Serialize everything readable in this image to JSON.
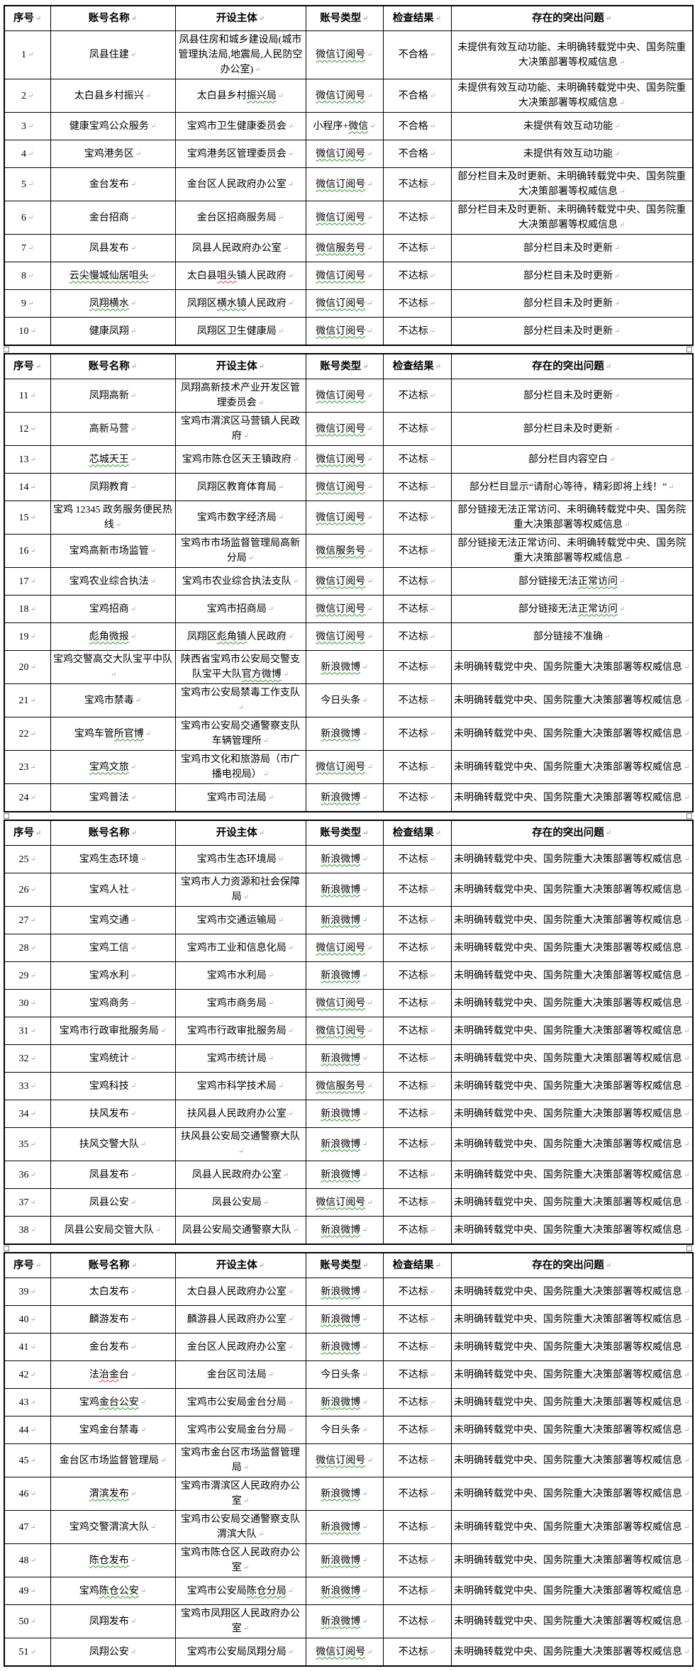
{
  "colors": {
    "border": "#000000",
    "squiggle_green": "#1fa11f",
    "squiggle_red": "#ef2f2f",
    "pilcrow_gray": "#a9a9a9"
  },
  "columns": [
    "序号",
    "账号名称",
    "开设主体",
    "账号类型",
    "检查结果",
    "存在的突出问题"
  ],
  "tables": [
    {
      "rows": [
        {
          "no": "1",
          "name": "凤县住建",
          "entity": "凤县住房和城乡建设局(城市管理执法局,地震局,人民防空办公室)",
          "type": [
            {
              "t": "微信订阅号",
              "u": "g"
            }
          ],
          "result": "不合格",
          "problem": "未提供有效互动功能、未明确转载党中央、国务院重大决策部署等权威信息"
        },
        {
          "no": "2",
          "name": "太白县乡村振兴",
          "entity": [
            {
              "t": "太白县乡村"
            },
            {
              "t": "振兴局",
              "u": "g"
            }
          ],
          "type": [
            {
              "t": "微信订阅号",
              "u": "g"
            }
          ],
          "result": "不合格",
          "problem": "未提供有效互动功能、未明确转载党中央、国务院重大决策部署等权威信息"
        },
        {
          "no": "3",
          "name": "健康宝鸡公众服务",
          "entity": "宝鸡市卫生健康委员会",
          "type": [
            {
              "t": "小程序+"
            },
            {
              "t": "微信",
              "u": "g"
            }
          ],
          "result": "不合格",
          "problem": "未提供有效互动功能"
        },
        {
          "no": "4",
          "name": "宝鸡港务区",
          "entity": "宝鸡港务区管理委员会",
          "type": [
            {
              "t": "微信订阅号",
              "u": "g"
            }
          ],
          "result": "不合格",
          "problem": "未提供有效互动功能"
        },
        {
          "no": "5",
          "name": "金台发布",
          "entity": "金台区人民政府办公室",
          "type": [
            {
              "t": "微信订阅号",
              "u": "g"
            }
          ],
          "result": "不达标",
          "problem": "部分栏目未及时更新、未明确转载党中央、国务院重大决策部署等权威信息"
        },
        {
          "no": "6",
          "name": "金台招商",
          "entity": "金台区招商服务局",
          "type": [
            {
              "t": "微信订阅号",
              "u": "g"
            }
          ],
          "result": "不达标",
          "problem": "部分栏目未及时更新、未明确转载党中央、国务院重大决策部署等权威信息"
        },
        {
          "no": "7",
          "name": "凤县发布",
          "entity": "凤县人民政府办公室",
          "type": [
            {
              "t": "微信服务号",
              "u": "g"
            }
          ],
          "result": "不达标",
          "problem": "部分栏目未及时更新"
        },
        {
          "no": "8",
          "name": [
            {
              "t": "云尖慢城仙居咀头",
              "u": "g"
            }
          ],
          "entity": [
            {
              "t": "太白县"
            },
            {
              "t": "咀头",
              "u": "r"
            },
            {
              "t": "镇人民政府"
            }
          ],
          "type": [
            {
              "t": "微信订阅号",
              "u": "g"
            }
          ],
          "result": "不达标",
          "problem": "部分栏目未及时更新"
        },
        {
          "no": "9",
          "name": [
            {
              "t": "凤翔横水",
              "u": "g"
            }
          ],
          "entity": [
            {
              "t": "凤翔区"
            },
            {
              "t": "横水镇",
              "u": "g"
            },
            {
              "t": "人民政府"
            }
          ],
          "type": [
            {
              "t": "微信订阅号",
              "u": "g"
            }
          ],
          "result": "不达标",
          "problem": "部分栏目未及时更新"
        },
        {
          "no": "10",
          "name": "健康凤翔",
          "entity": "凤翔区卫生健康局",
          "type": [
            {
              "t": "微信订阅号",
              "u": "g"
            }
          ],
          "result": "不达标",
          "problem": "部分栏目未及时更新"
        }
      ]
    },
    {
      "rows": [
        {
          "no": "11",
          "name": "凤翔高新",
          "entity": "凤翔高新技术产业开发区管理委员会",
          "type": [
            {
              "t": "微信订阅号",
              "u": "g"
            }
          ],
          "result": "不达标",
          "problem": "部分栏目未及时更新"
        },
        {
          "no": "12",
          "name": "高新马营",
          "entity": "宝鸡市渭滨区马营镇人民政府",
          "type": [
            {
              "t": "微信订阅号",
              "u": "g"
            }
          ],
          "result": "不达标",
          "problem": "部分栏目未及时更新"
        },
        {
          "no": "13",
          "name": [
            {
              "t": "芯城天王",
              "u": "g"
            }
          ],
          "entity": "宝鸡市陈仓区天王镇政府",
          "type": [
            {
              "t": "微信订阅号",
              "u": "g"
            }
          ],
          "result": "不达标",
          "problem": "部分栏目内容空白"
        },
        {
          "no": "14",
          "name": "凤翔教育",
          "entity": "凤翔区教育体育局",
          "type": [
            {
              "t": "微信订阅号",
              "u": "g"
            }
          ],
          "result": "不达标",
          "problem": "部分栏目显示“请耐心等待，精彩即将上线！”"
        },
        {
          "no": "15",
          "name": "宝鸡 12345 政务服务便民热线",
          "entity": "宝鸡市数字经济局",
          "type": [
            {
              "t": "微信订阅号",
              "u": "g"
            }
          ],
          "result": "不达标",
          "problem": "部分链接无法正常访问、未明确转载党中央、国务院重大决策部署等权威信息"
        },
        {
          "no": "16",
          "name": "宝鸡高新市场监管",
          "entity": "宝鸡市市场监督管理局高新分局",
          "type": [
            {
              "t": "微信服务号",
              "u": "g"
            }
          ],
          "result": "不达标",
          "problem": "部分链接无法正常访问、未明确转载党中央、国务院重大决策部署等权威信息"
        },
        {
          "no": "17",
          "name": "宝鸡农业综合执法",
          "entity": "宝鸡市农业综合执法支队",
          "type": [
            {
              "t": "微信订阅号",
              "u": "g"
            }
          ],
          "result": "不达标",
          "problem": [
            {
              "t": "部分链接无法"
            },
            {
              "t": "正常访问",
              "u": "g"
            }
          ]
        },
        {
          "no": "18",
          "name": "宝鸡招商",
          "entity": "宝鸡市招商局",
          "type": [
            {
              "t": "微信订阅号",
              "u": "g"
            }
          ],
          "result": "不达标",
          "problem": [
            {
              "t": "部分链接无法"
            },
            {
              "t": "正常访问",
              "u": "g"
            }
          ]
        },
        {
          "no": "19",
          "name": [
            {
              "t": "彪角微报",
              "u": "g"
            }
          ],
          "entity": [
            {
              "t": "凤翔区"
            },
            {
              "t": "彪角镇",
              "u": "g"
            },
            {
              "t": "人民政府"
            }
          ],
          "type": [
            {
              "t": "微信订阅号",
              "u": "g"
            }
          ],
          "result": "不达标",
          "problem": "部分链接不准确"
        },
        {
          "no": "20",
          "name": "宝鸡交警高交大队宝平中队",
          "entity": [
            {
              "t": "陕西省宝鸡市公安局交警支队宝平大队"
            },
            {
              "t": "官方微博",
              "u": "g"
            }
          ],
          "type": [
            {
              "t": "新浪微博",
              "u": "g"
            }
          ],
          "result": "不达标",
          "problem": "未明确转载党中央、国务院重大决策部署等权威信息"
        },
        {
          "no": "21",
          "name": "宝鸡市禁毒",
          "entity": "宝鸡市公安局禁毒工作支队",
          "type": "今日头条",
          "result": "不达标",
          "problem": "未明确转载党中央、国务院重大决策部署等权威信息"
        },
        {
          "no": "22",
          "name": [
            {
              "t": "宝鸡车管"
            },
            {
              "t": "所官博",
              "u": "g"
            }
          ],
          "entity": "宝鸡市公安局交通警察支队车辆管理所",
          "type": [
            {
              "t": "新浪微博",
              "u": "g"
            }
          ],
          "result": "不达标",
          "problem": "未明确转载党中央、国务院重大决策部署等权威信息"
        },
        {
          "no": "23",
          "name": [
            {
              "t": "宝鸡文旅",
              "u": "g"
            }
          ],
          "entity": "宝鸡市文化和旅游局（市广播电视局）",
          "type": [
            {
              "t": "微信订阅号",
              "u": "g"
            }
          ],
          "result": "不达标",
          "problem": "未明确转载党中央、国务院重大决策部署等权威信息"
        },
        {
          "no": "24",
          "name": "宝鸡普法",
          "entity": "宝鸡市司法局",
          "type": [
            {
              "t": "新浪微博",
              "u": "g"
            }
          ],
          "result": "不达标",
          "problem": "未明确转载党中央、国务院重大决策部署等权威信息"
        }
      ]
    },
    {
      "rows": [
        {
          "no": "25",
          "name": "宝鸡生态环境",
          "entity": "宝鸡市生态环境局",
          "type": [
            {
              "t": "新浪微博",
              "u": "g"
            }
          ],
          "result": "不达标",
          "problem": "未明确转载党中央、国务院重大决策部署等权威信息"
        },
        {
          "no": "26",
          "name": "宝鸡人社",
          "entity": "宝鸡市人力资源和社会保障局",
          "type": [
            {
              "t": "新浪微博",
              "u": "g"
            }
          ],
          "result": "不达标",
          "problem": "未明确转载党中央、国务院重大决策部署等权威信息"
        },
        {
          "no": "27",
          "name": "宝鸡交通",
          "entity": "宝鸡市交通运输局",
          "type": [
            {
              "t": "新浪微博",
              "u": "g"
            }
          ],
          "result": "不达标",
          "problem": "未明确转载党中央、国务院重大决策部署等权威信息"
        },
        {
          "no": "28",
          "name": "宝鸡工信",
          "entity": "宝鸡市工业和信息化局",
          "type": [
            {
              "t": "微信订阅号",
              "u": "g"
            }
          ],
          "result": "不达标",
          "problem": "未明确转载党中央、国务院重大决策部署等权威信息"
        },
        {
          "no": "29",
          "name": "宝鸡水利",
          "entity": "宝鸡市水利局",
          "type": [
            {
              "t": "新浪微博",
              "u": "g"
            }
          ],
          "result": "不达标",
          "problem": "未明确转载党中央、国务院重大决策部署等权威信息"
        },
        {
          "no": "30",
          "name": "宝鸡商务",
          "entity": "宝鸡市商务局",
          "type": [
            {
              "t": "微信订阅号",
              "u": "g"
            }
          ],
          "result": "不达标",
          "problem": "未明确转载党中央、国务院重大决策部署等权威信息"
        },
        {
          "no": "31",
          "name": "宝鸡市行政审批服务局",
          "entity": "宝鸡市行政审批服务局",
          "type": [
            {
              "t": "微信订阅号",
              "u": "g"
            }
          ],
          "result": "不达标",
          "problem": "未明确转载党中央、国务院重大决策部署等权威信息"
        },
        {
          "no": "32",
          "name": "宝鸡统计",
          "entity": "宝鸡市统计局",
          "type": [
            {
              "t": "新浪微博",
              "u": "g"
            }
          ],
          "result": "不达标",
          "problem": "未明确转载党中央、国务院重大决策部署等权威信息"
        },
        {
          "no": "33",
          "name": "宝鸡科技",
          "entity": "宝鸡市科学技术局",
          "type": [
            {
              "t": "微信服务号",
              "u": "g"
            }
          ],
          "result": "不达标",
          "problem": "未明确转载党中央、国务院重大决策部署等权威信息"
        },
        {
          "no": "34",
          "name": "扶风发布",
          "entity": "扶风县人民政府办公室",
          "type": [
            {
              "t": "新浪微博",
              "u": "g"
            }
          ],
          "result": "不达标",
          "problem": "未明确转载党中央、国务院重大决策部署等权威信息"
        },
        {
          "no": "35",
          "name": "扶风交警大队",
          "entity": "扶风县公安局交通警察大队",
          "type": [
            {
              "t": "新浪微博",
              "u": "g"
            }
          ],
          "result": "不达标",
          "problem": "未明确转载党中央、国务院重大决策部署等权威信息"
        },
        {
          "no": "36",
          "name": "凤县发布",
          "entity": "凤县人民政府办公室",
          "type": [
            {
              "t": "新浪微博",
              "u": "g"
            }
          ],
          "result": "不达标",
          "problem": "未明确转载党中央、国务院重大决策部署等权威信息"
        },
        {
          "no": "37",
          "name": "凤县公安",
          "entity": "凤县公安局",
          "type": [
            {
              "t": "微信订阅号",
              "u": "g"
            }
          ],
          "result": "不达标",
          "problem": "未明确转载党中央、国务院重大决策部署等权威信息"
        },
        {
          "no": "38",
          "name": "凤县公安局交管大队",
          "entity": "凤县公安局交通警察大队",
          "type": [
            {
              "t": "新浪微博",
              "u": "g"
            }
          ],
          "result": "不达标",
          "problem": "未明确转载党中央、国务院重大决策部署等权威信息"
        }
      ]
    },
    {
      "rows": [
        {
          "no": "39",
          "name": "太白发布",
          "entity": "太白县人民政府办公室",
          "type": [
            {
              "t": "新浪微博",
              "u": "g"
            }
          ],
          "result": "不达标",
          "problem": "未明确转载党中央、国务院重大决策部署等权威信息"
        },
        {
          "no": "40",
          "name": "麟游发布",
          "entity": "麟游县人民政府办公室",
          "type": [
            {
              "t": "新浪微博",
              "u": "g"
            }
          ],
          "result": "不达标",
          "problem": "未明确转载党中央、国务院重大决策部署等权威信息"
        },
        {
          "no": "41",
          "name": "金台发布",
          "entity": "金台区人民政府办公室",
          "type": [
            {
              "t": "新浪微博",
              "u": "g"
            }
          ],
          "result": "不达标",
          "problem": "未明确转载党中央、国务院重大决策部署等权威信息"
        },
        {
          "no": "42",
          "name": [
            {
              "t": "法"
            },
            {
              "t": "治金",
              "u": "r"
            },
            {
              "t": "台"
            }
          ],
          "entity": "金台区司法局",
          "type": "今日头条",
          "result": "不达标",
          "problem": "未明确转载党中央、国务院重大决策部署等权威信息"
        },
        {
          "no": "43",
          "name": [
            {
              "t": "宝鸡"
            },
            {
              "t": "金台公安",
              "u": "g"
            }
          ],
          "entity": "宝鸡市公安局金台分局",
          "type": [
            {
              "t": "新浪微博",
              "u": "g"
            }
          ],
          "result": "不达标",
          "problem": "未明确转载党中央、国务院重大决策部署等权威信息"
        },
        {
          "no": "44",
          "name": "宝鸡金台禁毒",
          "entity": "宝鸡市公安局金台分局",
          "type": "今日头条",
          "result": "不达标",
          "problem": "未明确转载党中央、国务院重大决策部署等权威信息"
        },
        {
          "no": "45",
          "name": "金台区市场监督管理局",
          "entity": "宝鸡市金台区市场监督管理局",
          "type": [
            {
              "t": "微信订阅号",
              "u": "g"
            }
          ],
          "result": "不达标",
          "problem": "未明确转载党中央、国务院重大决策部署等权威信息"
        },
        {
          "no": "46",
          "name": [
            {
              "t": "渭滨发布",
              "u": "g"
            }
          ],
          "entity": "宝鸡市渭滨区人民政府办公室",
          "type": [
            {
              "t": "新浪微博",
              "u": "g"
            }
          ],
          "result": "不达标",
          "problem": "未明确转载党中央、国务院重大决策部署等权威信息"
        },
        {
          "no": "47",
          "name": "宝鸡交警渭滨大队",
          "entity": "宝鸡市公安局交通警察支队渭滨大队",
          "type": [
            {
              "t": "新浪微博",
              "u": "g"
            }
          ],
          "result": "不达标",
          "problem": "未明确转载党中央、国务院重大决策部署等权威信息"
        },
        {
          "no": "48",
          "name": [
            {
              "t": "陈仓发布",
              "u": "g"
            }
          ],
          "entity": "宝鸡市陈仓区人民政府办公室",
          "type": [
            {
              "t": "新浪微博",
              "u": "g"
            }
          ],
          "result": "不达标",
          "problem": "未明确转载党中央、国务院重大决策部署等权威信息"
        },
        {
          "no": "49",
          "name": [
            {
              "t": "宝鸡"
            },
            {
              "t": "陈仓公安",
              "u": "g"
            }
          ],
          "entity": [
            {
              "t": "宝鸡市公安局"
            },
            {
              "t": "陈仓分局",
              "u": "g"
            }
          ],
          "type": [
            {
              "t": "新浪微博",
              "u": "g"
            }
          ],
          "result": "不达标",
          "problem": "未明确转载党中央、国务院重大决策部署等权威信息"
        },
        {
          "no": "50",
          "name": "凤翔发布",
          "entity": "宝鸡市凤翔区人民政府办公室",
          "type": [
            {
              "t": "新浪微博",
              "u": "g"
            }
          ],
          "result": "不达标",
          "problem": "未明确转载党中央、国务院重大决策部署等权威信息"
        },
        {
          "no": "51",
          "name": "凤翔公安",
          "entity": "宝鸡市公安局凤翔分局",
          "type": [
            {
              "t": "微信订阅号",
              "u": "g"
            }
          ],
          "result": "不达标",
          "problem": "未明确转载党中央、国务院重大决策部署等权威信息"
        }
      ]
    }
  ]
}
